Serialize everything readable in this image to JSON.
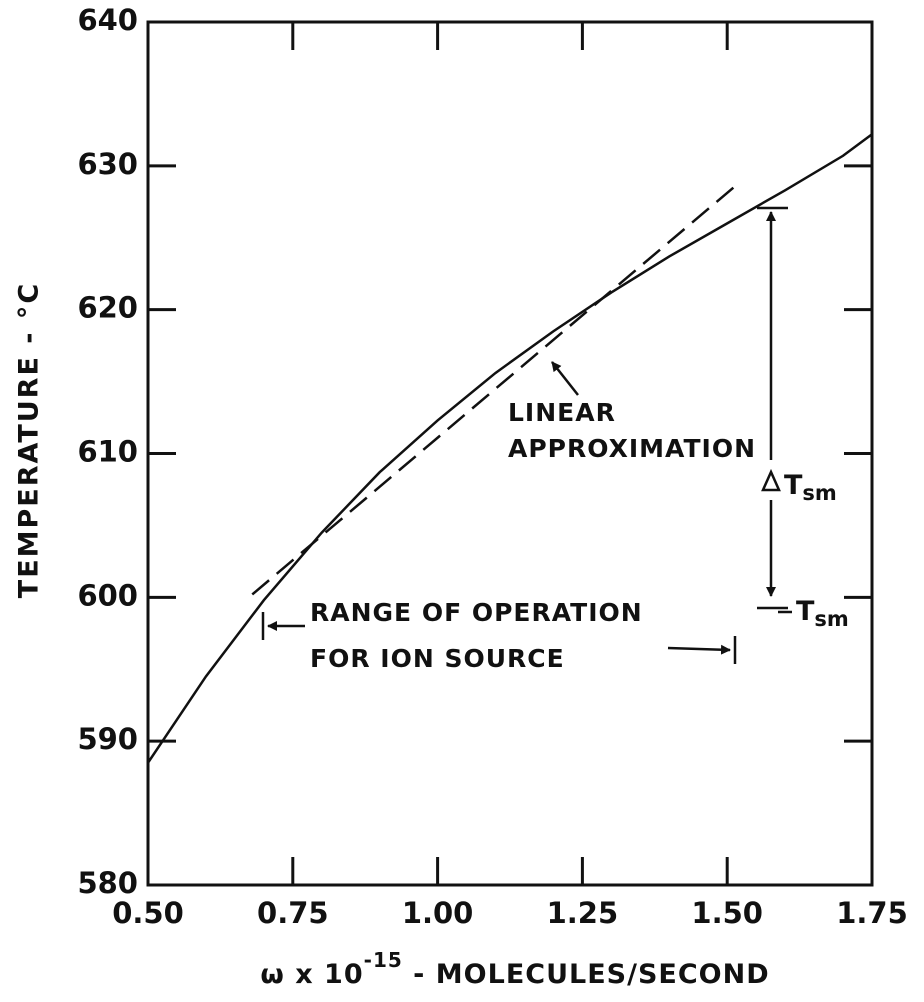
{
  "chart_data": {
    "type": "line",
    "x_label": {
      "base": "ω x 10",
      "sup": "-15",
      "rest": " - MOLECULES/SECOND"
    },
    "y_label": "TEMPERATURE - °C",
    "xlim": [
      0.5,
      1.75
    ],
    "ylim": [
      580,
      640
    ],
    "xticks": [
      {
        "value": 0.5,
        "label": "0.50"
      },
      0.75,
      {
        "value": 1,
        "label": "1.00"
      },
      1.25,
      {
        "value": 1.5,
        "label": "1.50"
      },
      1.75
    ],
    "yticks": [
      580,
      590,
      600,
      610,
      620,
      630,
      640
    ],
    "series": [
      {
        "color": "#111111",
        "dash": false,
        "x": [
          0.5,
          0.6,
          0.7,
          0.8,
          0.9,
          1.0,
          1.1,
          1.2,
          1.3,
          1.4,
          1.5,
          1.6,
          1.7,
          1.75
        ],
        "values": [
          588.5,
          594.5,
          599.8,
          604.5,
          608.7,
          612.3,
          615.6,
          618.5,
          621.2,
          623.7,
          626.0,
          628.3,
          630.7,
          632.2
        ]
      },
      {
        "color": "#111111",
        "dash": true,
        "x": [
          0.68,
          1.52
        ],
        "values": [
          600.2,
          628.8
        ]
      }
    ],
    "annotations": {
      "linear": [
        "LINEAR",
        "APPROXIMATION"
      ],
      "range": [
        "RANGE OF OPERATION",
        "FOR ION SOURCE"
      ],
      "tsm": {
        "base": "T",
        "sub": "sm"
      }
    }
  }
}
